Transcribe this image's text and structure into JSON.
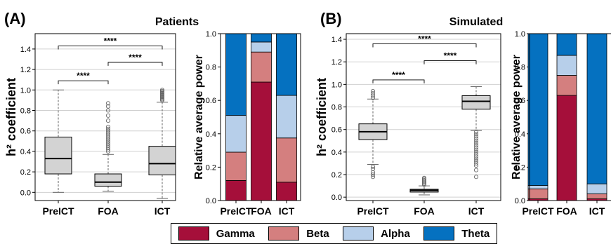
{
  "panels": {
    "a": {
      "letter": "(A)",
      "title": "Patients"
    },
    "b": {
      "letter": "(B)",
      "title": "Simulated"
    }
  },
  "legend": [
    {
      "label": "Gamma",
      "color": "#a50f3a"
    },
    {
      "label": "Beta",
      "color": "#d47f7f"
    },
    {
      "label": "Alpha",
      "color": "#b7cfea"
    },
    {
      "label": "Theta",
      "color": "#0571c0"
    }
  ],
  "chart_data": [
    {
      "type": "box",
      "panel": "A",
      "ylabel": "h² coefficient",
      "categories": [
        "PreICT",
        "FOA",
        "ICT"
      ],
      "ylim": [
        -0.08,
        1.55
      ],
      "yticks": [
        "0.0",
        "0.2",
        "0.4",
        "0.6",
        "0.8",
        "1.0",
        "1.2",
        "1.4"
      ],
      "grid": true,
      "boxes": [
        {
          "min": 0.0,
          "q1": 0.18,
          "median": 0.33,
          "q3": 0.54,
          "max": 1.0,
          "outliers": []
        },
        {
          "min": 0.01,
          "q1": 0.06,
          "median": 0.1,
          "q3": 0.18,
          "max": 0.37,
          "outliers": [
            0.4,
            0.42,
            0.44,
            0.46,
            0.48,
            0.5,
            0.52,
            0.54,
            0.56,
            0.58,
            0.6,
            0.62,
            0.64,
            0.7,
            0.75,
            0.8,
            0.84,
            0.87
          ]
        },
        {
          "min": -0.06,
          "q1": 0.17,
          "median": 0.28,
          "q3": 0.45,
          "max": 0.88,
          "outliers": [
            0.9,
            0.91,
            0.92,
            0.93,
            0.94,
            0.95,
            0.96,
            0.97,
            0.98,
            0.99,
            1.0
          ]
        }
      ],
      "significance": [
        {
          "from": 0,
          "to": 1,
          "y": 1.09,
          "label": "****"
        },
        {
          "from": 1,
          "to": 2,
          "y": 1.27,
          "label": "****"
        },
        {
          "from": 0,
          "to": 2,
          "y": 1.43,
          "label": "****"
        }
      ]
    },
    {
      "type": "stacked-bar",
      "panel": "A",
      "ylabel": "Relative average power",
      "categories": [
        "PreICT",
        "FOA",
        "ICT"
      ],
      "ylim": [
        0,
        1
      ],
      "yticks": [
        "0.0",
        "0.2",
        "0.4",
        "0.6",
        "0.8",
        "1.0"
      ],
      "series": [
        {
          "name": "Gamma",
          "values": [
            0.12,
            0.71,
            0.11
          ]
        },
        {
          "name": "Beta",
          "values": [
            0.17,
            0.18,
            0.265
          ]
        },
        {
          "name": "Alpha",
          "values": [
            0.22,
            0.06,
            0.255
          ]
        },
        {
          "name": "Theta",
          "values": [
            0.49,
            0.05,
            0.37
          ]
        }
      ]
    },
    {
      "type": "box",
      "panel": "B",
      "ylabel": "h² coefficient",
      "categories": [
        "PreICT",
        "FOA",
        "ICT"
      ],
      "ylim": [
        -0.03,
        1.45
      ],
      "yticks": [
        "0.0",
        "0.2",
        "0.4",
        "0.6",
        "0.8",
        "1.0",
        "1.2",
        "1.4"
      ],
      "grid": true,
      "boxes": [
        {
          "min": 0.29,
          "q1": 0.51,
          "median": 0.58,
          "q3": 0.65,
          "max": 0.87,
          "outliers": [
            0.18,
            0.2,
            0.22,
            0.25,
            0.27,
            0.88,
            0.9,
            0.92,
            0.94
          ]
        },
        {
          "min": 0.02,
          "q1": 0.045,
          "median": 0.06,
          "q3": 0.07,
          "max": 0.1,
          "outliers": [
            0.11,
            0.12,
            0.13,
            0.14,
            0.15,
            0.16,
            0.17
          ]
        },
        {
          "min": 0.59,
          "q1": 0.78,
          "median": 0.85,
          "q3": 0.9,
          "max": 0.98,
          "outliers": [
            0.18,
            0.24,
            0.28,
            0.3,
            0.32,
            0.34,
            0.36,
            0.38,
            0.4,
            0.42,
            0.44,
            0.46,
            0.48,
            0.5,
            0.52,
            0.54,
            0.56,
            0.58
          ]
        }
      ],
      "significance": [
        {
          "from": 0,
          "to": 1,
          "y": 1.04,
          "label": "****"
        },
        {
          "from": 1,
          "to": 2,
          "y": 1.21,
          "label": "****"
        },
        {
          "from": 0,
          "to": 2,
          "y": 1.36,
          "label": "****"
        }
      ]
    },
    {
      "type": "stacked-bar",
      "panel": "B",
      "ylabel": "Relative average power",
      "categories": [
        "PreICT",
        "FOA",
        "ICT"
      ],
      "ylim": [
        0,
        1
      ],
      "yticks": [
        "0.0",
        "0.2",
        "0.4",
        "0.6",
        "0.8",
        "1.0"
      ],
      "series": [
        {
          "name": "Gamma",
          "values": [
            0.01,
            0.63,
            0.01
          ]
        },
        {
          "name": "Beta",
          "values": [
            0.06,
            0.12,
            0.03
          ]
        },
        {
          "name": "Alpha",
          "values": [
            0.02,
            0.12,
            0.06
          ]
        },
        {
          "name": "Theta",
          "values": [
            0.91,
            0.13,
            0.9
          ]
        }
      ]
    }
  ]
}
